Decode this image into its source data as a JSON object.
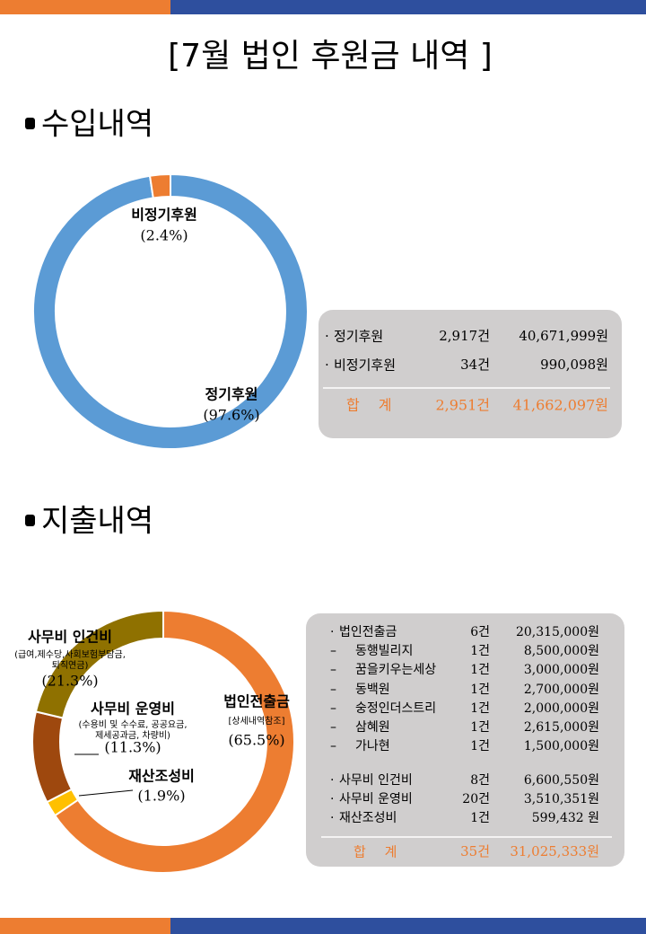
{
  "title": "[7월 법인 후원금 내역 ]",
  "income": {
    "heading": "수입내역",
    "rows": [
      [
        "·",
        "정기후원",
        "2,917건",
        "40,671,999원"
      ],
      [
        "·",
        "비정기후원",
        "34건",
        "990,098원"
      ]
    ],
    "total": [
      "합 계",
      "2,951건",
      "41,662,097원"
    ]
  },
  "expense": {
    "heading": "지출내역",
    "rows": [
      [
        "·",
        "법인전출금",
        "6건",
        "20,315,000원"
      ],
      [
        "–",
        "동행빌리지",
        "1건",
        "8,500,000원"
      ],
      [
        "–",
        "꿈을키우는세상",
        "1건",
        "3,000,000원"
      ],
      [
        "–",
        "동백원",
        "1건",
        "2,700,000원"
      ],
      [
        "–",
        "숭정인더스트리",
        "1건",
        "2,000,000원"
      ],
      [
        "–",
        "삼혜원",
        "1건",
        "2,615,000원"
      ],
      [
        "–",
        "가나현",
        "1건",
        "1,500,000원"
      ],
      [
        "·",
        "사무비 인건비",
        "8건",
        "6,600,550원"
      ],
      [
        "·",
        "사무비 운영비",
        "20건",
        "3,510,351원"
      ],
      [
        "·",
        "재산조성비",
        "1건",
        "599,432 원"
      ]
    ],
    "total": [
      "합 계",
      "35건",
      "31,025,333원"
    ]
  },
  "chart_data": [
    {
      "type": "donut",
      "categories": [
        "정기후원",
        "비정기후원"
      ],
      "values": [
        97.6,
        2.4
      ],
      "value_labels": [
        "(97.6%)",
        "(2.4%)"
      ],
      "colors": [
        "#5b9bd5",
        "#ed7d31"
      ]
    },
    {
      "type": "donut",
      "categories": [
        "법인전출금",
        "재산조성비",
        "사무비 운영비",
        "사무비 인건비"
      ],
      "values": [
        65.5,
        1.9,
        11.3,
        21.3
      ],
      "value_labels": [
        "(65.5%)",
        "(1.9%)",
        "(11.3%)",
        "(21.3%)"
      ],
      "sublabels": [
        [
          "[상세내역참조]"
        ],
        [],
        [
          "(수용비 및 수수료, 공공요금,",
          "제세공과금, 차량비)"
        ],
        [
          "(급여,제수당,사회보험부담금,",
          "퇴직연금)"
        ]
      ],
      "colors": [
        "#ed7d31",
        "#ffc000",
        "#9e480e",
        "#8f7100"
      ]
    }
  ]
}
